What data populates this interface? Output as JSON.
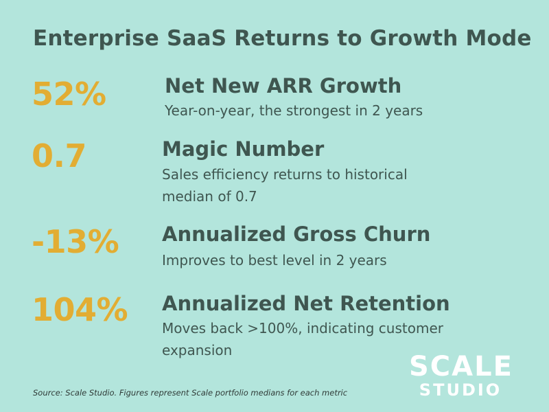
{
  "title": "Enterprise SaaS Returns to Growth Mode",
  "metrics": [
    {
      "value": "52%",
      "heading": "Net New ARR Growth",
      "description": "Year-on-year, the strongest in 2 years"
    },
    {
      "value": "0.7",
      "heading": "Magic Number",
      "description": "Sales efficiency returns to historical median of 0.7"
    },
    {
      "value": "-13%",
      "heading": "Annualized Gross Churn",
      "description": "Improves to best level in 2 years"
    },
    {
      "value": "104%",
      "heading": "Annualized Net Retention",
      "description": "Moves back >100%, indicating customer expansion"
    }
  ],
  "source": "Source: Scale Studio. Figures represent Scale portfolio medians for each metric",
  "logo": {
    "line1": "SCALE",
    "line2": "STUDIO"
  },
  "colors": {
    "background": "#b3e5dc",
    "accent": "#e2ad33",
    "text": "#3f5650",
    "logo": "#ffffff"
  }
}
